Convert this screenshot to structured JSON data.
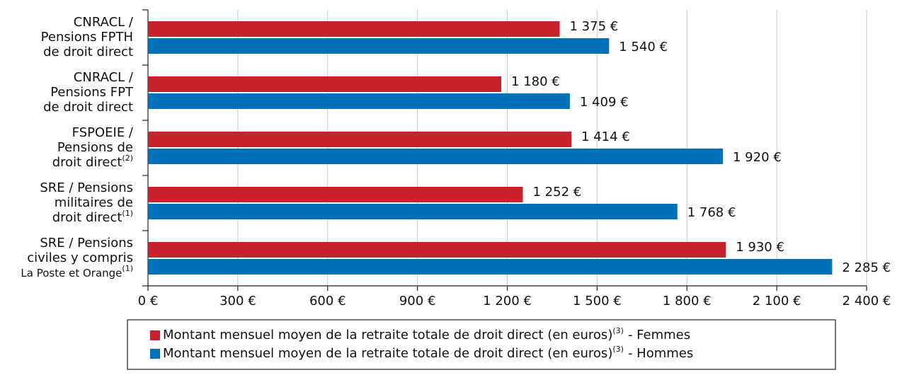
{
  "chart_data": {
    "type": "hbar",
    "categories": [
      [
        "CNRACL /",
        "Pensions FPTH",
        "de droit direct"
      ],
      [
        "CNRACL /",
        "Pensions FPT",
        "de droit direct"
      ],
      [
        "FSPOEIE /",
        "Pensions  de",
        "droit direct"
      ],
      [
        "SRE / Pensions",
        "militaires  de",
        "droit direct"
      ],
      [
        "SRE / Pensions",
        "civiles y compris",
        "La Poste et Orange"
      ]
    ],
    "category_notes": [
      null,
      null,
      "(2)",
      "(1)",
      "(1)"
    ],
    "series": [
      {
        "name": "Montant mensuel moyen de la retraite totale de droit direct (en euros)",
        "note": "(3)",
        "suffix": "- Femmes",
        "color": "#c8232c",
        "values": [
          1375,
          1180,
          1414,
          1252,
          1930
        ],
        "value_labels": [
          "1 375 €",
          "1 180 €",
          "1 414 €",
          "1 252 €",
          "1 930 €"
        ]
      },
      {
        "name": "Montant mensuel moyen de la retraite totale de droit direct (en euros)",
        "note": "(3)",
        "suffix": "- Hommes",
        "color": "#0070b8",
        "values": [
          1540,
          1409,
          1920,
          1768,
          2285
        ],
        "value_labels": [
          "1 540 €",
          "1 409 €",
          "1 920 €",
          "1 768 €",
          "2 285 €"
        ]
      }
    ],
    "xlim": [
      0,
      2400
    ],
    "xticks": [
      {
        "value": 0,
        "label": "0 €"
      },
      {
        "value": 300,
        "label": "300 €"
      },
      {
        "value": 600,
        "label": "600 €"
      },
      {
        "value": 900,
        "label": "900 €"
      },
      {
        "value": 1200,
        "label": "1 200 €"
      },
      {
        "value": 1500,
        "label": "1 500 €"
      },
      {
        "value": 1800,
        "label": "1 800 €"
      },
      {
        "value": 2100,
        "label": "2 100 €"
      },
      {
        "value": 2400,
        "label": "2 400 €"
      }
    ],
    "grid": true
  }
}
